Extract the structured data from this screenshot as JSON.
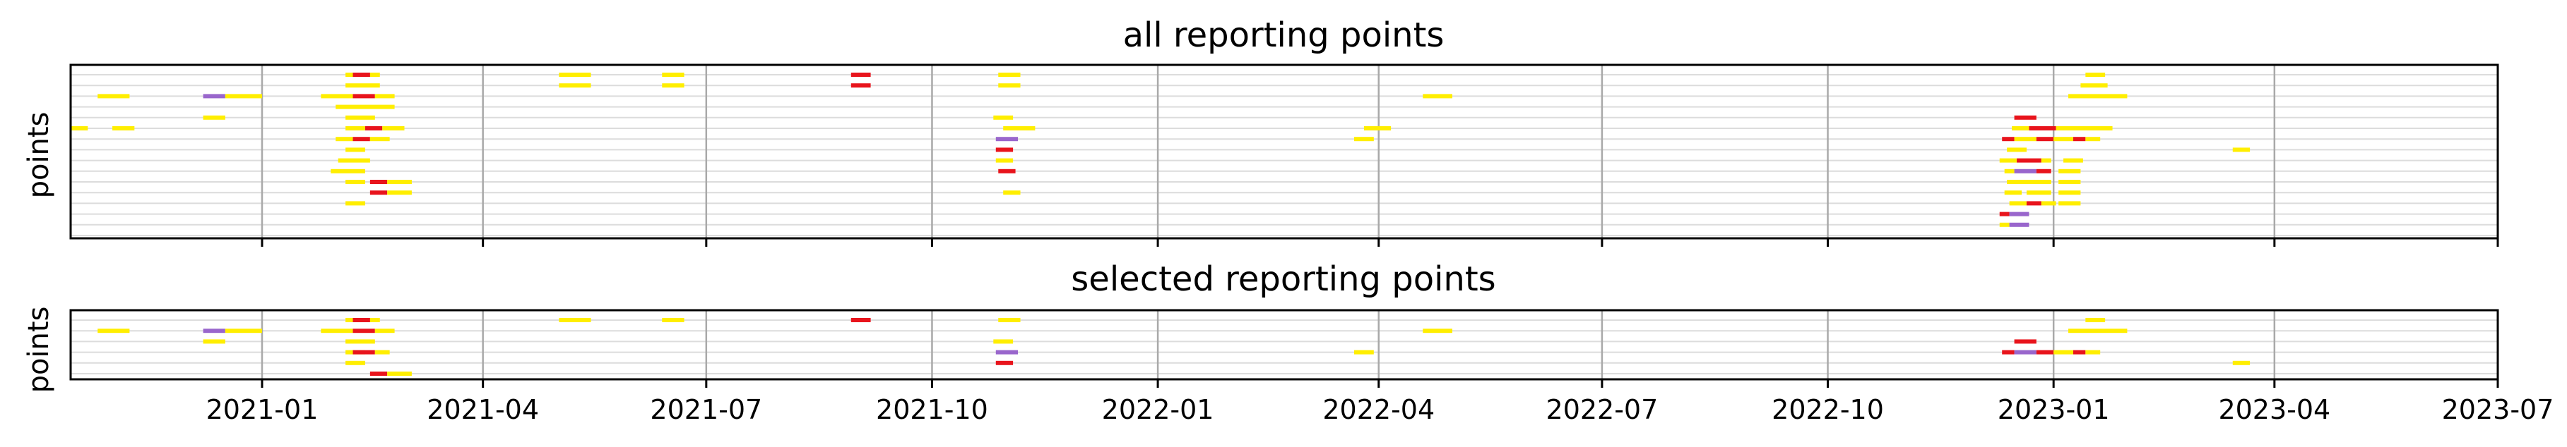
{
  "chart_data": [
    {
      "type": "timeline",
      "title": "all reporting points",
      "ylabel": "points",
      "xlim": [
        "2020-10-15",
        "2023-07-01"
      ],
      "xticks": [
        "2021-01",
        "2021-04",
        "2021-07",
        "2021-10",
        "2022-01",
        "2022-04",
        "2022-07",
        "2022-10",
        "2023-01",
        "2023-04",
        "2023-07"
      ],
      "grid": true,
      "rows": 16,
      "segments": [
        {
          "row": 0,
          "start": "2021-02-04",
          "end": "2021-02-18",
          "color": "#ffee00"
        },
        {
          "row": 0,
          "start": "2021-02-07",
          "end": "2021-02-14",
          "color": "#e8141c"
        },
        {
          "row": 0,
          "start": "2021-05-02",
          "end": "2021-05-15",
          "color": "#ffee00"
        },
        {
          "row": 0,
          "start": "2021-06-13",
          "end": "2021-06-22",
          "color": "#ffee00"
        },
        {
          "row": 0,
          "start": "2021-08-29",
          "end": "2021-09-06",
          "color": "#e8141c"
        },
        {
          "row": 0,
          "start": "2021-10-28",
          "end": "2021-11-06",
          "color": "#ffee00"
        },
        {
          "row": 0,
          "start": "2023-01-14",
          "end": "2023-01-22",
          "color": "#ffee00"
        },
        {
          "row": 1,
          "start": "2021-02-04",
          "end": "2021-02-18",
          "color": "#ffee00"
        },
        {
          "row": 1,
          "start": "2021-05-02",
          "end": "2021-05-15",
          "color": "#ffee00"
        },
        {
          "row": 1,
          "start": "2021-06-13",
          "end": "2021-06-22",
          "color": "#ffee00"
        },
        {
          "row": 1,
          "start": "2021-08-29",
          "end": "2021-09-06",
          "color": "#e8141c"
        },
        {
          "row": 1,
          "start": "2021-10-28",
          "end": "2021-11-06",
          "color": "#ffee00"
        },
        {
          "row": 1,
          "start": "2023-01-12",
          "end": "2023-01-23",
          "color": "#ffee00"
        },
        {
          "row": 2,
          "start": "2020-10-26",
          "end": "2020-11-08",
          "color": "#ffee00"
        },
        {
          "row": 2,
          "start": "2020-12-08",
          "end": "2020-12-17",
          "color": "#9966cc"
        },
        {
          "row": 2,
          "start": "2020-12-17",
          "end": "2021-01-01",
          "color": "#ffee00"
        },
        {
          "row": 2,
          "start": "2021-01-25",
          "end": "2021-02-07",
          "color": "#ffee00"
        },
        {
          "row": 2,
          "start": "2021-02-07",
          "end": "2021-02-16",
          "color": "#e8141c"
        },
        {
          "row": 2,
          "start": "2021-02-16",
          "end": "2021-02-24",
          "color": "#ffee00"
        },
        {
          "row": 2,
          "start": "2022-04-19",
          "end": "2022-05-01",
          "color": "#ffee00"
        },
        {
          "row": 2,
          "start": "2023-01-07",
          "end": "2023-01-31",
          "color": "#ffee00"
        },
        {
          "row": 3,
          "start": "2021-01-31",
          "end": "2021-02-24",
          "color": "#ffee00"
        },
        {
          "row": 4,
          "start": "2020-12-08",
          "end": "2020-12-17",
          "color": "#ffee00"
        },
        {
          "row": 4,
          "start": "2021-02-04",
          "end": "2021-02-16",
          "color": "#ffee00"
        },
        {
          "row": 4,
          "start": "2021-10-26",
          "end": "2021-11-03",
          "color": "#ffee00"
        },
        {
          "row": 4,
          "start": "2022-12-16",
          "end": "2022-12-25",
          "color": "#e8141c"
        },
        {
          "row": 5,
          "start": "2020-10-15",
          "end": "2020-10-22",
          "color": "#ffee00"
        },
        {
          "row": 5,
          "start": "2020-11-01",
          "end": "2020-11-10",
          "color": "#ffee00"
        },
        {
          "row": 5,
          "start": "2021-02-04",
          "end": "2021-02-12",
          "color": "#ffee00"
        },
        {
          "row": 5,
          "start": "2021-02-12",
          "end": "2021-02-19",
          "color": "#e8141c"
        },
        {
          "row": 5,
          "start": "2021-02-19",
          "end": "2021-02-28",
          "color": "#ffee00"
        },
        {
          "row": 5,
          "start": "2021-10-30",
          "end": "2021-11-12",
          "color": "#ffee00"
        },
        {
          "row": 5,
          "start": "2022-03-26",
          "end": "2022-04-06",
          "color": "#ffee00"
        },
        {
          "row": 5,
          "start": "2022-12-15",
          "end": "2022-12-22",
          "color": "#ffee00"
        },
        {
          "row": 5,
          "start": "2022-12-22",
          "end": "2023-01-02",
          "color": "#e8141c"
        },
        {
          "row": 5,
          "start": "2023-01-02",
          "end": "2023-01-25",
          "color": "#ffee00"
        },
        {
          "row": 6,
          "start": "2021-01-31",
          "end": "2021-02-07",
          "color": "#ffee00"
        },
        {
          "row": 6,
          "start": "2021-02-07",
          "end": "2021-02-14",
          "color": "#e8141c"
        },
        {
          "row": 6,
          "start": "2021-02-14",
          "end": "2021-02-22",
          "color": "#ffee00"
        },
        {
          "row": 6,
          "start": "2021-10-27",
          "end": "2021-11-05",
          "color": "#9966cc"
        },
        {
          "row": 6,
          "start": "2022-03-22",
          "end": "2022-03-30",
          "color": "#ffee00"
        },
        {
          "row": 6,
          "start": "2022-12-11",
          "end": "2022-12-16",
          "color": "#e8141c"
        },
        {
          "row": 6,
          "start": "2022-12-16",
          "end": "2022-12-25",
          "color": "#ffee00"
        },
        {
          "row": 6,
          "start": "2022-12-25",
          "end": "2023-01-01",
          "color": "#e8141c"
        },
        {
          "row": 6,
          "start": "2023-01-01",
          "end": "2023-01-09",
          "color": "#ffee00"
        },
        {
          "row": 6,
          "start": "2023-01-09",
          "end": "2023-01-14",
          "color": "#e8141c"
        },
        {
          "row": 6,
          "start": "2023-01-14",
          "end": "2023-01-20",
          "color": "#ffee00"
        },
        {
          "row": 7,
          "start": "2021-02-04",
          "end": "2021-02-12",
          "color": "#ffee00"
        },
        {
          "row": 7,
          "start": "2021-10-27",
          "end": "2021-11-03",
          "color": "#e8141c"
        },
        {
          "row": 7,
          "start": "2022-12-13",
          "end": "2022-12-21",
          "color": "#ffee00"
        },
        {
          "row": 7,
          "start": "2023-03-15",
          "end": "2023-03-22",
          "color": "#ffee00"
        },
        {
          "row": 8,
          "start": "2021-02-01",
          "end": "2021-02-14",
          "color": "#ffee00"
        },
        {
          "row": 8,
          "start": "2021-10-27",
          "end": "2021-11-03",
          "color": "#ffee00"
        },
        {
          "row": 8,
          "start": "2022-12-10",
          "end": "2022-12-17",
          "color": "#ffee00"
        },
        {
          "row": 8,
          "start": "2022-12-17",
          "end": "2022-12-27",
          "color": "#e8141c"
        },
        {
          "row": 8,
          "start": "2022-12-27",
          "end": "2022-12-31",
          "color": "#ffee00"
        },
        {
          "row": 8,
          "start": "2023-01-05",
          "end": "2023-01-13",
          "color": "#ffee00"
        },
        {
          "row": 9,
          "start": "2021-01-29",
          "end": "2021-02-12",
          "color": "#ffee00"
        },
        {
          "row": 9,
          "start": "2021-10-28",
          "end": "2021-11-04",
          "color": "#e8141c"
        },
        {
          "row": 9,
          "start": "2022-12-12",
          "end": "2022-12-16",
          "color": "#ffee00"
        },
        {
          "row": 9,
          "start": "2022-12-16",
          "end": "2022-12-25",
          "color": "#9966cc"
        },
        {
          "row": 9,
          "start": "2022-12-25",
          "end": "2022-12-31",
          "color": "#e8141c"
        },
        {
          "row": 9,
          "start": "2023-01-03",
          "end": "2023-01-12",
          "color": "#ffee00"
        },
        {
          "row": 10,
          "start": "2021-02-04",
          "end": "2021-02-12",
          "color": "#ffee00"
        },
        {
          "row": 10,
          "start": "2021-02-14",
          "end": "2021-02-21",
          "color": "#e8141c"
        },
        {
          "row": 10,
          "start": "2021-02-21",
          "end": "2021-03-03",
          "color": "#ffee00"
        },
        {
          "row": 10,
          "start": "2022-12-13",
          "end": "2022-12-20",
          "color": "#ffee00"
        },
        {
          "row": 10,
          "start": "2022-12-20",
          "end": "2022-12-31",
          "color": "#ffee00"
        },
        {
          "row": 10,
          "start": "2023-01-03",
          "end": "2023-01-12",
          "color": "#ffee00"
        },
        {
          "row": 11,
          "start": "2021-02-14",
          "end": "2021-02-21",
          "color": "#e8141c"
        },
        {
          "row": 11,
          "start": "2021-02-21",
          "end": "2021-03-03",
          "color": "#ffee00"
        },
        {
          "row": 11,
          "start": "2021-10-30",
          "end": "2021-11-06",
          "color": "#ffee00"
        },
        {
          "row": 11,
          "start": "2022-12-12",
          "end": "2022-12-19",
          "color": "#ffee00"
        },
        {
          "row": 11,
          "start": "2022-12-21",
          "end": "2022-12-31",
          "color": "#ffee00"
        },
        {
          "row": 11,
          "start": "2023-01-03",
          "end": "2023-01-12",
          "color": "#ffee00"
        },
        {
          "row": 12,
          "start": "2021-02-04",
          "end": "2021-02-12",
          "color": "#ffee00"
        },
        {
          "row": 12,
          "start": "2022-12-14",
          "end": "2022-12-21",
          "color": "#ffee00"
        },
        {
          "row": 12,
          "start": "2022-12-21",
          "end": "2022-12-27",
          "color": "#e8141c"
        },
        {
          "row": 12,
          "start": "2022-12-27",
          "end": "2023-01-02",
          "color": "#ffee00"
        },
        {
          "row": 12,
          "start": "2023-01-03",
          "end": "2023-01-12",
          "color": "#ffee00"
        },
        {
          "row": 13,
          "start": "2022-12-10",
          "end": "2022-12-14",
          "color": "#e8141c"
        },
        {
          "row": 13,
          "start": "2022-12-14",
          "end": "2022-12-22",
          "color": "#9966cc"
        },
        {
          "row": 14,
          "start": "2022-12-10",
          "end": "2022-12-14",
          "color": "#ffee00"
        },
        {
          "row": 14,
          "start": "2022-12-14",
          "end": "2022-12-22",
          "color": "#9966cc"
        }
      ]
    },
    {
      "type": "timeline",
      "title": "selected reporting points",
      "ylabel": "points",
      "xlim": [
        "2020-10-15",
        "2023-07-01"
      ],
      "xticks": [
        "2021-01",
        "2021-04",
        "2021-07",
        "2021-10",
        "2022-01",
        "2022-04",
        "2022-07",
        "2022-10",
        "2023-01",
        "2023-04",
        "2023-07"
      ],
      "grid": true,
      "rows": 6,
      "segments": [
        {
          "row": 0,
          "start": "2021-02-04",
          "end": "2021-02-18",
          "color": "#ffee00"
        },
        {
          "row": 0,
          "start": "2021-02-07",
          "end": "2021-02-14",
          "color": "#e8141c"
        },
        {
          "row": 0,
          "start": "2021-05-02",
          "end": "2021-05-15",
          "color": "#ffee00"
        },
        {
          "row": 0,
          "start": "2021-06-13",
          "end": "2021-06-22",
          "color": "#ffee00"
        },
        {
          "row": 0,
          "start": "2021-08-29",
          "end": "2021-09-06",
          "color": "#e8141c"
        },
        {
          "row": 0,
          "start": "2021-10-28",
          "end": "2021-11-06",
          "color": "#ffee00"
        },
        {
          "row": 0,
          "start": "2023-01-14",
          "end": "2023-01-22",
          "color": "#ffee00"
        },
        {
          "row": 1,
          "start": "2020-10-26",
          "end": "2020-11-08",
          "color": "#ffee00"
        },
        {
          "row": 1,
          "start": "2020-12-08",
          "end": "2020-12-17",
          "color": "#9966cc"
        },
        {
          "row": 1,
          "start": "2020-12-17",
          "end": "2021-01-01",
          "color": "#ffee00"
        },
        {
          "row": 1,
          "start": "2021-01-25",
          "end": "2021-02-07",
          "color": "#ffee00"
        },
        {
          "row": 1,
          "start": "2021-02-07",
          "end": "2021-02-16",
          "color": "#e8141c"
        },
        {
          "row": 1,
          "start": "2021-02-16",
          "end": "2021-02-24",
          "color": "#ffee00"
        },
        {
          "row": 1,
          "start": "2022-04-19",
          "end": "2022-05-01",
          "color": "#ffee00"
        },
        {
          "row": 1,
          "start": "2023-01-07",
          "end": "2023-01-31",
          "color": "#ffee00"
        },
        {
          "row": 2,
          "start": "2020-12-08",
          "end": "2020-12-17",
          "color": "#ffee00"
        },
        {
          "row": 2,
          "start": "2021-02-04",
          "end": "2021-02-16",
          "color": "#ffee00"
        },
        {
          "row": 2,
          "start": "2021-10-26",
          "end": "2021-11-03",
          "color": "#ffee00"
        },
        {
          "row": 2,
          "start": "2022-12-16",
          "end": "2022-12-25",
          "color": "#e8141c"
        },
        {
          "row": 3,
          "start": "2021-02-04",
          "end": "2021-02-12",
          "color": "#ffee00"
        },
        {
          "row": 3,
          "start": "2021-02-07",
          "end": "2021-02-16",
          "color": "#e8141c"
        },
        {
          "row": 3,
          "start": "2021-02-16",
          "end": "2021-02-22",
          "color": "#ffee00"
        },
        {
          "row": 3,
          "start": "2021-10-27",
          "end": "2021-11-05",
          "color": "#9966cc"
        },
        {
          "row": 3,
          "start": "2022-03-22",
          "end": "2022-03-30",
          "color": "#ffee00"
        },
        {
          "row": 3,
          "start": "2022-12-11",
          "end": "2022-12-16",
          "color": "#e8141c"
        },
        {
          "row": 3,
          "start": "2022-12-16",
          "end": "2022-12-25",
          "color": "#9966cc"
        },
        {
          "row": 3,
          "start": "2022-12-25",
          "end": "2023-01-01",
          "color": "#e8141c"
        },
        {
          "row": 3,
          "start": "2023-01-01",
          "end": "2023-01-09",
          "color": "#ffee00"
        },
        {
          "row": 3,
          "start": "2023-01-09",
          "end": "2023-01-14",
          "color": "#e8141c"
        },
        {
          "row": 3,
          "start": "2023-01-14",
          "end": "2023-01-20",
          "color": "#ffee00"
        },
        {
          "row": 4,
          "start": "2021-02-04",
          "end": "2021-02-12",
          "color": "#ffee00"
        },
        {
          "row": 4,
          "start": "2021-10-27",
          "end": "2021-11-03",
          "color": "#e8141c"
        },
        {
          "row": 4,
          "start": "2023-03-15",
          "end": "2023-03-22",
          "color": "#ffee00"
        },
        {
          "row": 5,
          "start": "2021-02-14",
          "end": "2021-02-21",
          "color": "#e8141c"
        },
        {
          "row": 5,
          "start": "2021-02-21",
          "end": "2021-03-03",
          "color": "#ffee00"
        }
      ]
    }
  ]
}
